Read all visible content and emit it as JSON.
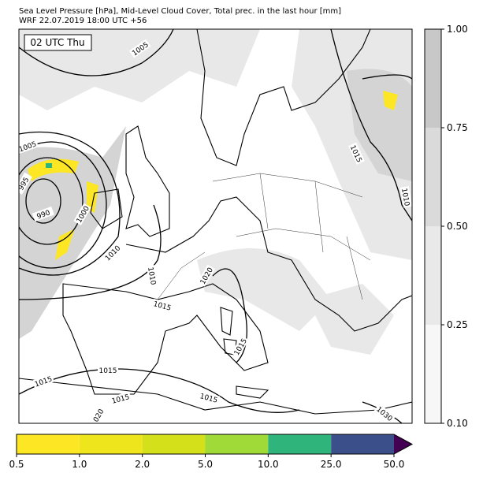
{
  "header": {
    "line1": "Sea Level Pressure [hPa], Mid-Level Cloud Cover, Total prec. in the last hour [mm]",
    "line2": "WRF 22.07.2019 18:00 UTC +56"
  },
  "time_label": "02 UTC Thu",
  "isobar_labels": [
    "1005",
    "1005",
    "995",
    "990",
    "1000",
    "1010",
    "1010",
    "1020",
    "1015",
    "1015",
    "1015",
    "1015",
    "1015",
    "1015",
    "020",
    "1015",
    "1010",
    "1030"
  ],
  "cloud_colorbar": {
    "colors": [
      "#f7f7f7",
      "#e9e9e9",
      "#dadada",
      "#c8c8c8"
    ],
    "ticks": [
      {
        "value": 0.1,
        "label": "0.10"
      },
      {
        "value": 0.25,
        "label": "0.25"
      },
      {
        "value": 0.5,
        "label": "0.50"
      },
      {
        "value": 0.75,
        "label": "0.75"
      },
      {
        "value": 1,
        "label": "1.00"
      }
    ]
  },
  "precip_colorbar": {
    "colors": [
      "#fde725",
      "#eee51c",
      "#d3e01a",
      "#a0da39",
      "#2fb47c",
      "#3b4f8a",
      "#440154"
    ],
    "ticks": [
      {
        "value": 0.5,
        "label": "0.5"
      },
      {
        "value": 1,
        "label": "1.0"
      },
      {
        "value": 2,
        "label": "2.0"
      },
      {
        "value": 5,
        "label": "5.0"
      },
      {
        "value": 10,
        "label": "10.0"
      },
      {
        "value": 25,
        "label": "25.0"
      },
      {
        "value": 50,
        "label": "50.0"
      }
    ]
  }
}
